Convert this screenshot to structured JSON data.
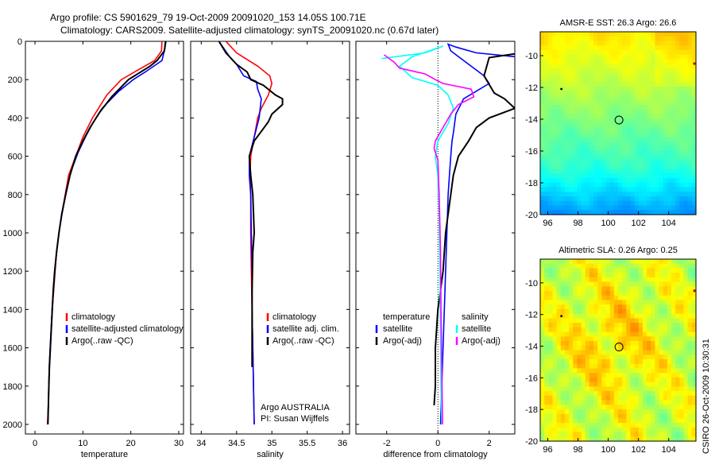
{
  "title_line1": "Argo profile: CS 5901629_79 19-Oct-2009 20091020_153 14.05S 100.71E",
  "title_line2": "Climatology: CARS2009. Satellite-adjusted climatology: synTS_20091020.nc (0.67d later)",
  "credit": "CSIRO 26-Oct-2009 10:30:31",
  "colors": {
    "climatology": "#ff0000",
    "satellite": "#0000ff",
    "argo": "#000000",
    "sat_salinity": "#00ffff",
    "argo_salinity": "#ff00ff"
  },
  "chart_data": [
    {
      "id": "temperature",
      "type": "line",
      "xlabel": "temperature",
      "xlim": [
        -2,
        31
      ],
      "ylim": [
        0,
        2050
      ],
      "xticks": [
        0,
        10,
        20,
        30
      ],
      "yticks": [
        0,
        200,
        400,
        600,
        800,
        1000,
        1200,
        1400,
        1600,
        1800,
        2000
      ],
      "legend": [
        "climatology",
        "satellite-adjusted climatology",
        "Argo(..raw -QC)"
      ],
      "series": [
        {
          "name": "climatology",
          "color": "#ff0000",
          "points": [
            [
              26.5,
              0
            ],
            [
              26.4,
              50
            ],
            [
              25,
              100
            ],
            [
              21.5,
              150
            ],
            [
              18,
              200
            ],
            [
              15,
              280
            ],
            [
              12,
              400
            ],
            [
              10,
              500
            ],
            [
              8.5,
              600
            ],
            [
              7,
              700
            ],
            [
              6.3,
              800
            ],
            [
              5.6,
              900
            ],
            [
              5,
              1000
            ],
            [
              4.5,
              1100
            ],
            [
              4.2,
              1200
            ],
            [
              3.9,
              1300
            ],
            [
              3.6,
              1400
            ],
            [
              3.4,
              1500
            ],
            [
              3.2,
              1600
            ],
            [
              3,
              1700
            ],
            [
              2.9,
              1800
            ],
            [
              2.8,
              1900
            ],
            [
              2.6,
              2000
            ]
          ]
        },
        {
          "name": "satellite-adjusted climatology",
          "color": "#0000ff",
          "points": [
            [
              27.2,
              0
            ],
            [
              27,
              50
            ],
            [
              26.5,
              100
            ],
            [
              23,
              160
            ],
            [
              20.5,
              200
            ],
            [
              17.5,
              260
            ],
            [
              14,
              350
            ],
            [
              12,
              430
            ],
            [
              10.5,
              500
            ],
            [
              9,
              580
            ],
            [
              7.5,
              680
            ],
            [
              6.5,
              780
            ],
            [
              5.8,
              880
            ],
            [
              5.1,
              980
            ],
            [
              4.6,
              1080
            ],
            [
              4.2,
              1180
            ],
            [
              3.9,
              1280
            ],
            [
              3.6,
              1380
            ],
            [
              3.4,
              1480
            ],
            [
              3.2,
              1580
            ],
            [
              3,
              1680
            ],
            [
              2.9,
              1780
            ],
            [
              2.8,
              1880
            ],
            [
              2.7,
              1990
            ]
          ]
        },
        {
          "name": "Argo(..raw -QC)",
          "color": "#000000",
          "points": [
            [
              27.3,
              0
            ],
            [
              27,
              50
            ],
            [
              25.5,
              100
            ],
            [
              24,
              130
            ],
            [
              19.5,
              200
            ],
            [
              16,
              290
            ],
            [
              13.5,
              370
            ],
            [
              11.5,
              450
            ],
            [
              10,
              520
            ],
            [
              8.5,
              600
            ],
            [
              7.3,
              700
            ],
            [
              6.4,
              800
            ],
            [
              5.6,
              900
            ],
            [
              5,
              1000
            ],
            [
              4.5,
              1100
            ],
            [
              4.1,
              1200
            ],
            [
              3.8,
              1300
            ],
            [
              3.6,
              1400
            ],
            [
              3.4,
              1500
            ],
            [
              3.2,
              1600
            ],
            [
              3,
              1700
            ],
            [
              2.9,
              1800
            ],
            [
              2.8,
              1900
            ],
            [
              2.7,
              2000
            ]
          ]
        }
      ]
    },
    {
      "id": "salinity",
      "type": "line",
      "xlabel": "salinity",
      "xlim": [
        33.85,
        36.1
      ],
      "ylim": [
        0,
        2050
      ],
      "xticks": [
        34,
        34.5,
        35,
        35.5,
        36
      ],
      "legend": [
        "climatology",
        "satellite adj. clim.",
        "Argo(..raw -QC)"
      ],
      "annotation": [
        "Argo AUSTRALIA",
        "PI: Susan Wijffels"
      ],
      "series": [
        {
          "name": "climatology",
          "color": "#ff0000",
          "points": [
            [
              34.35,
              0
            ],
            [
              34.5,
              60
            ],
            [
              34.8,
              130
            ],
            [
              34.97,
              180
            ],
            [
              35,
              220
            ],
            [
              34.95,
              280
            ],
            [
              34.85,
              350
            ],
            [
              34.8,
              400
            ],
            [
              34.75,
              500
            ],
            [
              34.7,
              600
            ],
            [
              34.69,
              700
            ],
            [
              34.7,
              800
            ],
            [
              34.7,
              1000
            ],
            [
              34.71,
              1200
            ],
            [
              34.72,
              1400
            ],
            [
              34.73,
              1600
            ],
            [
              34.74,
              1800
            ],
            [
              34.75,
              2000
            ]
          ]
        },
        {
          "name": "satellite adj. clim.",
          "color": "#0000ff",
          "points": [
            [
              34.25,
              0
            ],
            [
              34.4,
              80
            ],
            [
              34.5,
              120
            ],
            [
              34.6,
              180
            ],
            [
              34.78,
              210
            ],
            [
              34.8,
              250
            ],
            [
              34.85,
              300
            ],
            [
              34.82,
              400
            ],
            [
              34.75,
              500
            ],
            [
              34.68,
              600
            ],
            [
              34.68,
              700
            ],
            [
              34.7,
              800
            ],
            [
              34.71,
              1000
            ],
            [
              34.72,
              1200
            ],
            [
              34.72,
              1400
            ],
            [
              34.73,
              1600
            ],
            [
              34.74,
              1800
            ],
            [
              34.75,
              2000
            ]
          ]
        },
        {
          "name": "Argo(..raw -QC)",
          "color": "#000000",
          "points": [
            [
              34.25,
              0
            ],
            [
              34.35,
              60
            ],
            [
              34.5,
              120
            ],
            [
              34.65,
              160
            ],
            [
              34.7,
              200
            ],
            [
              34.88,
              230
            ],
            [
              35.05,
              280
            ],
            [
              35.15,
              300
            ],
            [
              35.15,
              330
            ],
            [
              35,
              380
            ],
            [
              34.95,
              420
            ],
            [
              34.85,
              470
            ],
            [
              34.75,
              520
            ],
            [
              34.68,
              600
            ],
            [
              34.7,
              700
            ],
            [
              34.73,
              800
            ],
            [
              34.75,
              1000
            ],
            [
              34.73,
              1100
            ],
            [
              34.72,
              1300
            ],
            [
              34.72,
              1500
            ],
            [
              34.72,
              1700
            ]
          ]
        }
      ]
    },
    {
      "id": "difference",
      "type": "line",
      "xlabel": "difference from climatology",
      "xlim": [
        -3.2,
        3
      ],
      "ylim": [
        0,
        2050
      ],
      "xticks": [
        -2,
        0,
        2
      ],
      "legend": {
        "temperature": [
          "satellite",
          "Argo(-adj)"
        ],
        "salinity": [
          "satellite",
          "Argo(-adj)"
        ]
      },
      "legend_titles": [
        "temperature",
        "salinity"
      ],
      "series": [
        {
          "name": "temperature satellite",
          "color": "#0000ff",
          "points": [
            [
              3,
              80
            ],
            [
              1.5,
              60
            ],
            [
              0.7,
              30
            ],
            [
              0.4,
              15
            ],
            [
              0.5,
              50
            ],
            [
              1.2,
              120
            ],
            [
              1.8,
              180
            ],
            [
              2,
              220
            ],
            [
              1.5,
              260
            ],
            [
              1,
              300
            ],
            [
              0.7,
              380
            ],
            [
              0.6,
              480
            ],
            [
              0.55,
              520
            ],
            [
              0.5,
              600
            ],
            [
              0.45,
              700
            ],
            [
              0.4,
              800
            ],
            [
              0.35,
              1000
            ],
            [
              0.3,
              1200
            ],
            [
              0.25,
              1400
            ],
            [
              0.2,
              1600
            ],
            [
              0.15,
              1800
            ],
            [
              0.1,
              2000
            ]
          ]
        },
        {
          "name": "temperature Argo(-adj)",
          "color": "#000000",
          "points": [
            [
              3,
              65
            ],
            [
              2,
              85
            ],
            [
              1.8,
              180
            ],
            [
              2.2,
              270
            ],
            [
              2.6,
              300
            ],
            [
              3,
              350
            ],
            [
              2,
              400
            ],
            [
              1.5,
              450
            ],
            [
              1.2,
              520
            ],
            [
              0.8,
              600
            ],
            [
              0.6,
              700
            ],
            [
              0.5,
              800
            ],
            [
              0.3,
              1000
            ],
            [
              0.2,
              1200
            ],
            [
              0,
              1400
            ],
            [
              -0.1,
              1600
            ],
            [
              -0.1,
              1800
            ],
            [
              -0.15,
              1900
            ]
          ]
        },
        {
          "name": "salinity satellite",
          "color": "#00ffff",
          "points": [
            [
              -2.2,
              90
            ],
            [
              -0.5,
              60
            ],
            [
              0.2,
              25
            ],
            [
              -1,
              80
            ],
            [
              -1.5,
              130
            ],
            [
              -1,
              190
            ],
            [
              0,
              230
            ],
            [
              0.4,
              280
            ],
            [
              0.6,
              350
            ],
            [
              0.4,
              430
            ],
            [
              0,
              520
            ],
            [
              -0.1,
              600
            ],
            [
              0,
              700
            ],
            [
              0.05,
              900
            ],
            [
              0.08,
              1200
            ],
            [
              0.1,
              1500
            ],
            [
              0.12,
              1800
            ],
            [
              0.15,
              2000
            ]
          ]
        },
        {
          "name": "salinity Argo(-adj)",
          "color": "#ff00ff",
          "points": [
            [
              -2.1,
              70
            ],
            [
              -1.7,
              110
            ],
            [
              -1.5,
              140
            ],
            [
              -0.5,
              170
            ],
            [
              -0.1,
              200
            ],
            [
              0.2,
              220
            ],
            [
              1.3,
              250
            ],
            [
              1.4,
              290
            ],
            [
              0.8,
              330
            ],
            [
              0.5,
              380
            ],
            [
              0.2,
              450
            ],
            [
              -0.1,
              520
            ],
            [
              -0.15,
              560
            ],
            [
              0,
              620
            ],
            [
              0.05,
              800
            ],
            [
              0.1,
              1100
            ],
            [
              0.12,
              1400
            ],
            [
              0.15,
              1700
            ],
            [
              0.18,
              2000
            ]
          ]
        }
      ]
    },
    {
      "id": "sst_map",
      "type": "heatmap",
      "title": "AMSR-E SST: 26.3  Argo: 26.6",
      "xticks": [
        96,
        98,
        100,
        102,
        104
      ],
      "yticks": [
        -10,
        -12,
        -14,
        -16,
        -18,
        -20
      ],
      "xlim": [
        95.5,
        105.8
      ],
      "ylim": [
        -20,
        -8.5
      ],
      "marker": [
        100.71,
        -14.05
      ]
    },
    {
      "id": "sla_map",
      "type": "heatmap",
      "title": "Altimetric SLA: 0.26  Argo: 0.25",
      "xticks": [
        96,
        98,
        100,
        102,
        104
      ],
      "yticks": [
        -10,
        -12,
        -14,
        -16,
        -18,
        -20
      ],
      "xlim": [
        95.5,
        105.8
      ],
      "ylim": [
        -20,
        -8.5
      ],
      "marker": [
        100.71,
        -14.05
      ]
    }
  ]
}
